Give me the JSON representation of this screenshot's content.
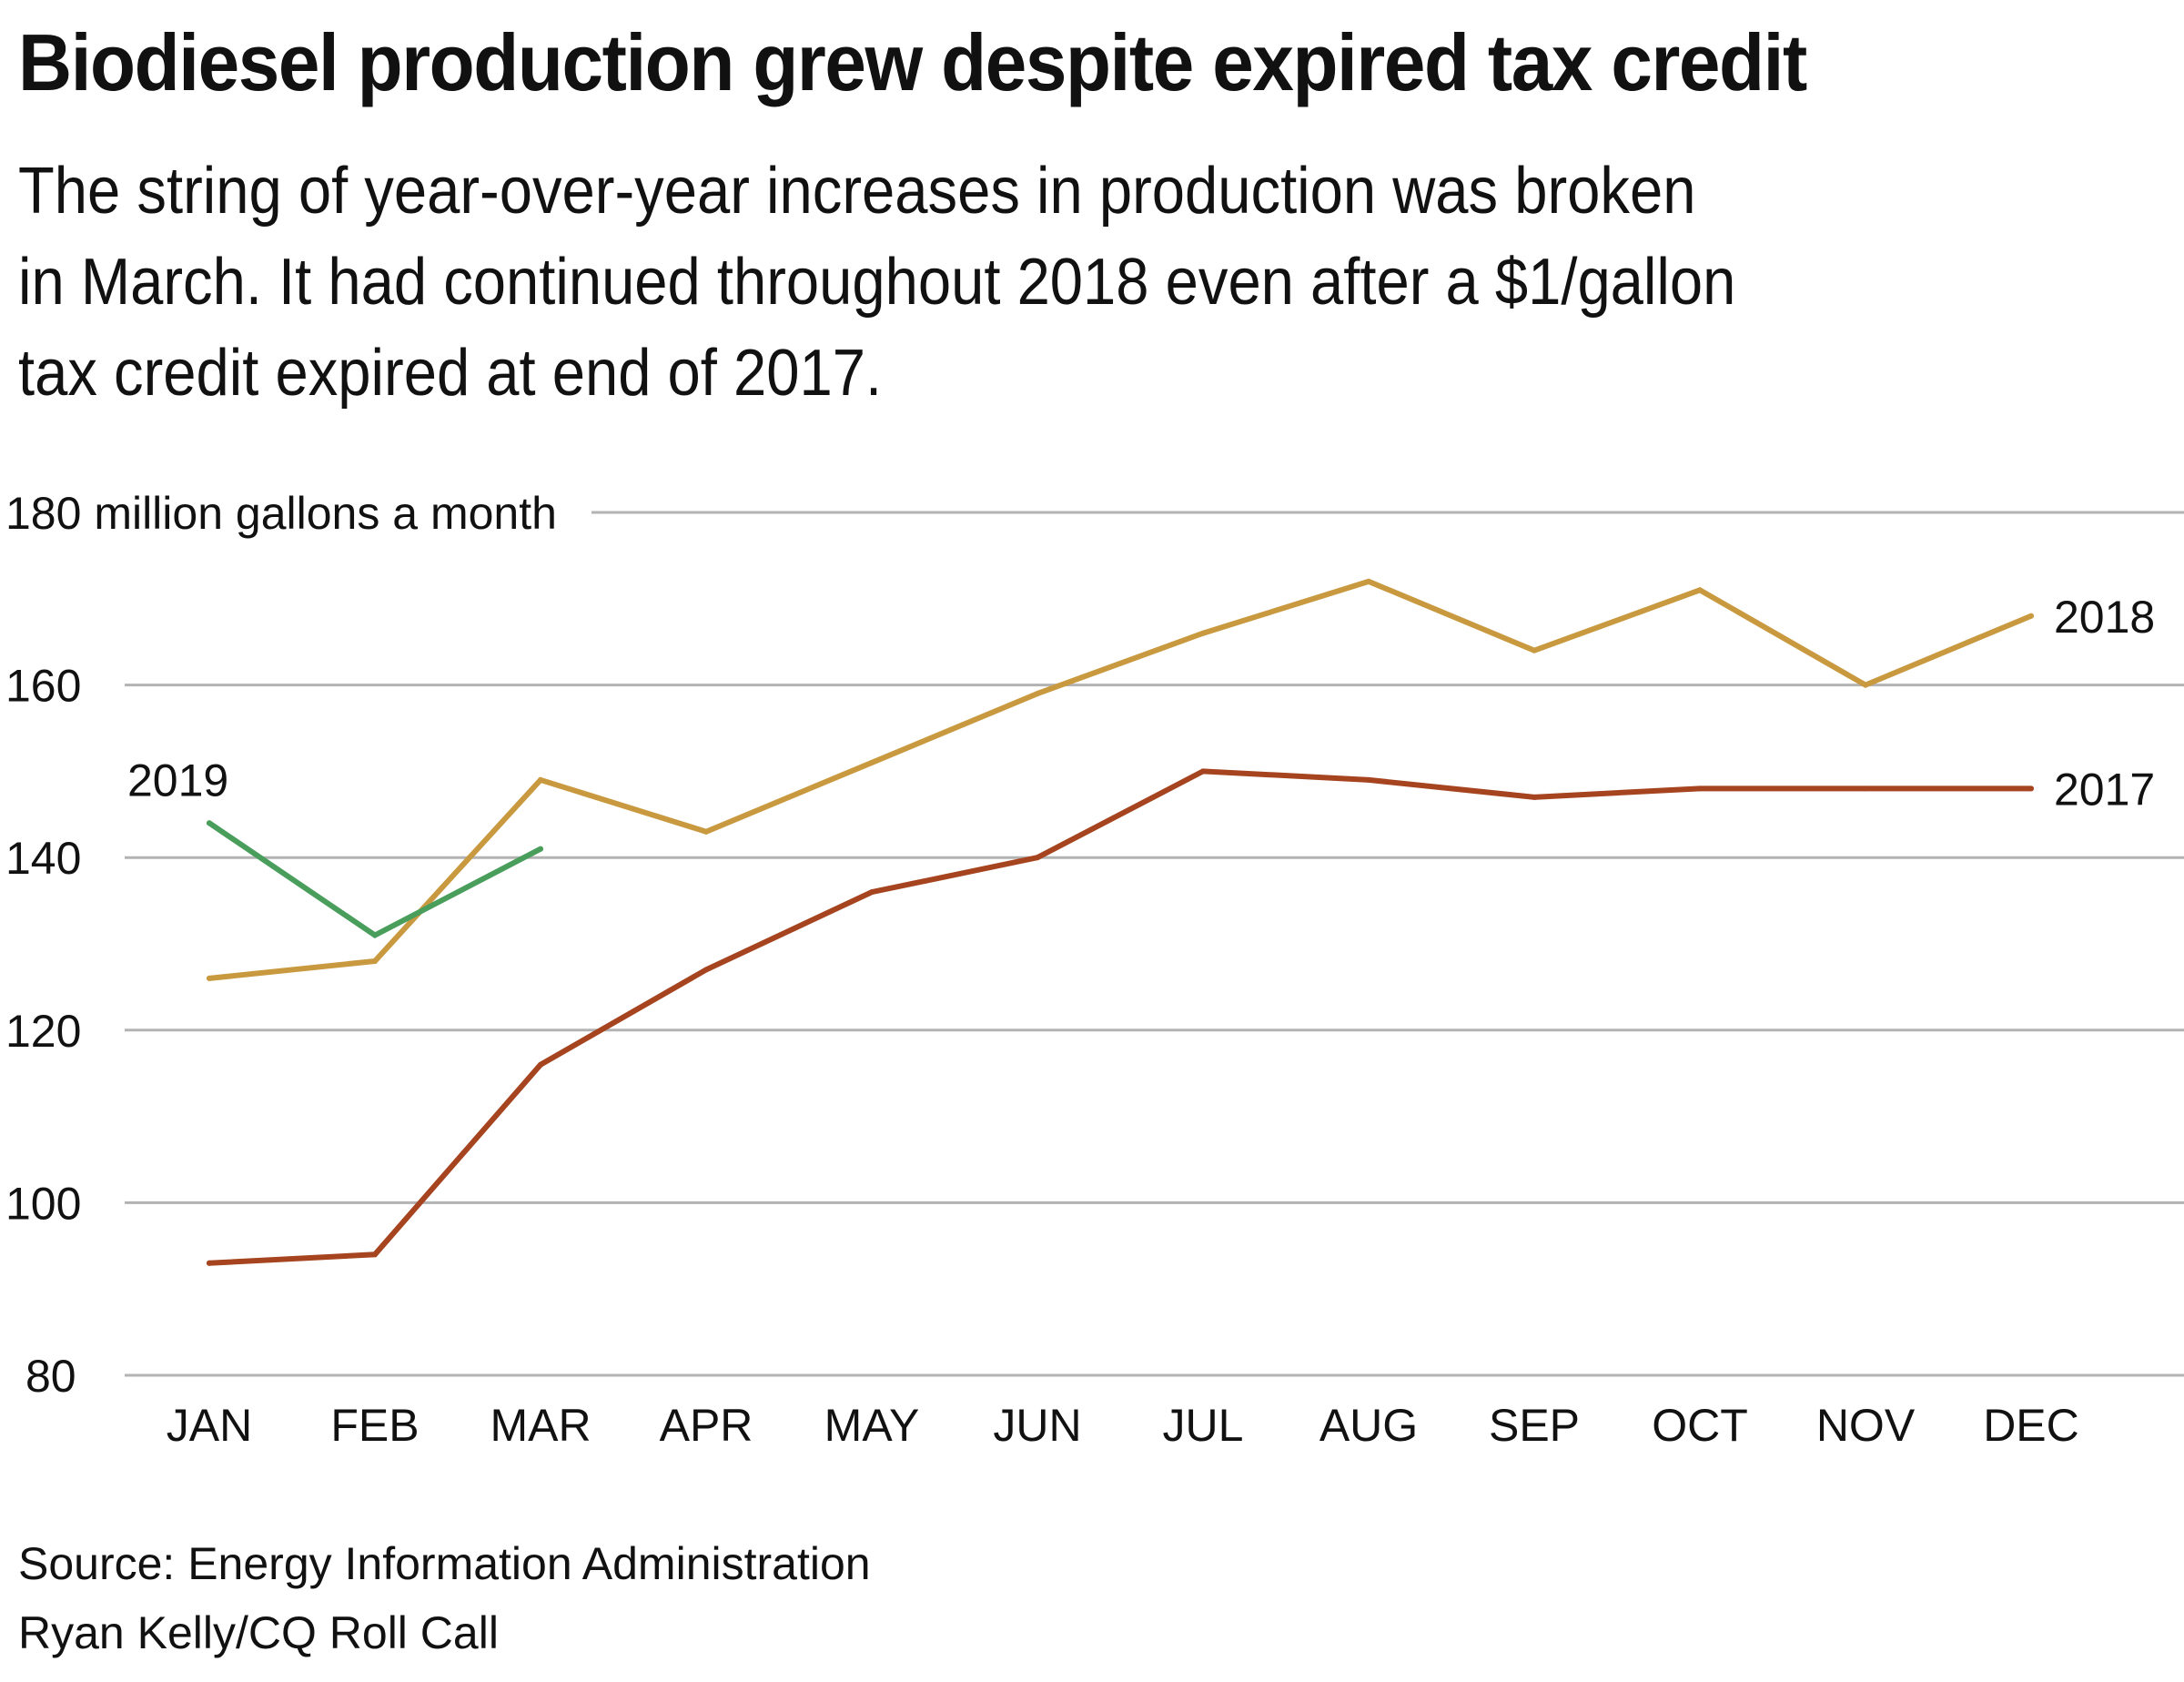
{
  "header": {
    "title": "Biodiesel production grew despite expired tax credit",
    "subtitle_lines": [
      "The string of year-over-year increases in production was broken",
      "in March. It had continued throughout 2018 even after a $1/gallon",
      "tax credit expired at end of 2017."
    ]
  },
  "footer": {
    "source": "Source: Energy Information Administration",
    "credit": "Ryan Kelly/CQ Roll Call"
  },
  "chart_data": {
    "type": "line",
    "title": "Biodiesel production grew despite expired tax credit",
    "xlabel": "",
    "ylabel": "million gallons a month",
    "y_unit_label": "180 million gallons a month",
    "ylim": [
      80,
      180
    ],
    "yticks": [
      80,
      100,
      120,
      140,
      160,
      180
    ],
    "ytick_labels": [
      "80",
      "100",
      "120",
      "140",
      "160",
      "180 million gallons a month"
    ],
    "grid": true,
    "legend": "direct labels at line ends",
    "categories": [
      "JAN",
      "FEB",
      "MAR",
      "APR",
      "MAY",
      "JUN",
      "JUL",
      "AUG",
      "SEP",
      "OCT",
      "NOV",
      "DEC"
    ],
    "series": [
      {
        "name": "2017",
        "color": "#A5441F",
        "label_position": "right",
        "values": [
          93,
          94,
          116,
          127,
          136,
          140,
          150,
          149,
          147,
          148,
          148,
          148
        ]
      },
      {
        "name": "2018",
        "color": "#C9993F",
        "label_position": "right",
        "values": [
          126,
          128,
          149,
          143,
          151,
          159,
          166,
          172,
          164,
          171,
          160,
          168
        ]
      },
      {
        "name": "2019",
        "color": "#4A9E5C",
        "label_position": "above-start",
        "values": [
          144,
          131,
          141,
          null,
          null,
          null,
          null,
          null,
          null,
          null,
          null,
          null
        ]
      }
    ],
    "gridline_color": "#B3B3B3"
  }
}
